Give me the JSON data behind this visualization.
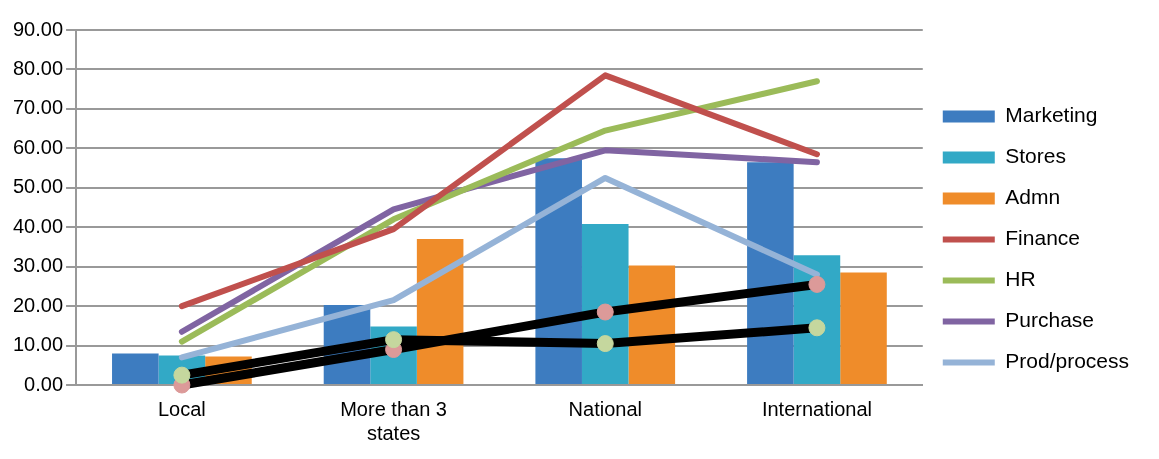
{
  "chart_data": {
    "type": "bar",
    "categories": [
      "Local",
      "More than 3 states",
      "National",
      "International"
    ],
    "series": [
      {
        "name": "Marketing",
        "color": "#3d7cc0",
        "values": [
          8.0,
          20.3,
          57.5,
          56.5
        ]
      },
      {
        "name": "Stores",
        "color": "#32a9c6",
        "values": [
          7.5,
          14.8,
          40.8,
          32.9
        ]
      },
      {
        "name": "Admn",
        "color": "#ef8c2a",
        "values": [
          7.2,
          37.0,
          30.3,
          28.5
        ]
      },
      {
        "name": "Finance",
        "type": "line",
        "color": "#c0504d",
        "values": [
          20.0,
          39.5,
          78.5,
          58.5
        ]
      },
      {
        "name": "HR",
        "type": "line",
        "color": "#9bbb59",
        "values": [
          11.0,
          42.0,
          64.5,
          77.0
        ]
      },
      {
        "name": "Purchase",
        "type": "line",
        "color": "#8064a2",
        "values": [
          13.5,
          44.5,
          59.5,
          56.5
        ]
      },
      {
        "name": "Prod/process",
        "type": "line",
        "color": "#95b3d7",
        "values": [
          7.0,
          21.5,
          52.5,
          28.0
        ]
      },
      {
        "type": "line",
        "color": "#000000",
        "marker": "circle",
        "colors": [
          "#dc9a99",
          "#dc9a99",
          "#dc9a99",
          "#dc9a99"
        ],
        "values": [
          0.0,
          9.0,
          18.5,
          25.5
        ]
      },
      {
        "type": "line",
        "color": "#000000",
        "marker": "circle",
        "colors": [
          "#c5d79e",
          "#c5d79e",
          "#c5d79e",
          "#c5d79e"
        ],
        "values": [
          2.5,
          11.5,
          10.5,
          14.5
        ]
      }
    ],
    "ylim": [
      0,
      90
    ],
    "yticks": [
      {
        "value": 0,
        "label": "0.00"
      },
      {
        "value": 10,
        "label": "10.00"
      },
      {
        "value": 20,
        "label": "20.00"
      },
      {
        "value": 30,
        "label": "30.00"
      },
      {
        "value": 40,
        "label": "40.00"
      },
      {
        "value": 50,
        "label": "50.00"
      },
      {
        "value": 60,
        "label": "60.00"
      },
      {
        "value": 70,
        "label": "70.00"
      },
      {
        "value": 80,
        "label": "80.00"
      },
      {
        "value": 90,
        "label": "90.00"
      }
    ],
    "grid": "y",
    "legend": "right",
    "marker": "none"
  }
}
